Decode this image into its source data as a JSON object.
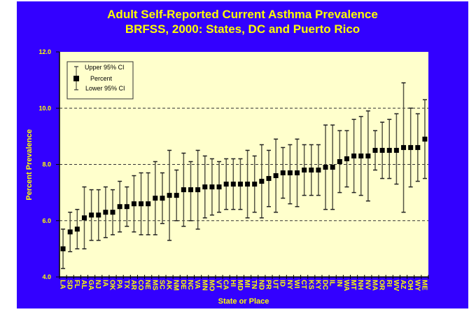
{
  "chart_data": {
    "type": "scatter",
    "title": "Adult Self-Reported Current Asthma Prevalence",
    "subtitle": "BRFSS, 2000: States, DC and Puerto Rico",
    "xlabel": "State or Place",
    "ylabel": "Percent Prevalence",
    "ylim": [
      4.0,
      12.0
    ],
    "yticks": [
      "4.0",
      "6.0",
      "8.0",
      "10.0",
      "12.0"
    ],
    "grid": "dashed horizontal at 6.0, 8.0, 10.0",
    "legend": {
      "placement": "top-left",
      "upper": "Upper 95% CI",
      "point": "Percent",
      "lower": "Lower 95% CI"
    },
    "colors": {
      "background": "#3300FF",
      "plot": "#FFFFCC",
      "text": "#FFFF00",
      "marker": "#000000",
      "errorbar": "#555544"
    },
    "categories": [
      "LA",
      "SD",
      "FL",
      "AL",
      "GA",
      "NJ",
      "IA",
      "OK",
      "PA",
      "TX",
      "AR",
      "CO",
      "NE",
      "MS",
      "SC",
      "AK",
      "NM",
      "DE",
      "NC",
      "VA",
      "MN",
      "MO",
      "VT",
      "CA",
      "HI",
      "MD",
      "MI",
      "TN",
      "ND",
      "PR",
      "UT",
      "ID",
      "NY",
      "WI",
      "CT",
      "KS",
      "KY",
      "DC",
      "IL",
      "IN",
      "WA",
      "MT",
      "NH",
      "NV",
      "MA",
      "OR",
      "RI",
      "WV",
      "AZ",
      "OH",
      "WY",
      "ME"
    ],
    "percent": [
      5.0,
      5.6,
      5.7,
      6.1,
      6.2,
      6.2,
      6.3,
      6.3,
      6.5,
      6.5,
      6.6,
      6.6,
      6.6,
      6.8,
      6.8,
      6.9,
      6.9,
      7.1,
      7.1,
      7.1,
      7.2,
      7.2,
      7.2,
      7.3,
      7.3,
      7.3,
      7.3,
      7.3,
      7.4,
      7.5,
      7.6,
      7.7,
      7.7,
      7.7,
      7.8,
      7.8,
      7.8,
      7.9,
      7.9,
      8.1,
      8.2,
      8.3,
      8.3,
      8.3,
      8.5,
      8.5,
      8.5,
      8.5,
      8.6,
      8.6,
      8.6,
      8.9
    ],
    "upper_ci": [
      5.7,
      6.3,
      6.4,
      7.2,
      7.1,
      7.1,
      7.2,
      7.1,
      7.4,
      7.2,
      7.6,
      7.7,
      7.7,
      8.1,
      7.7,
      8.5,
      7.8,
      8.4,
      8.1,
      8.5,
      8.3,
      8.2,
      8.1,
      8.2,
      8.2,
      8.2,
      8.5,
      8.3,
      8.7,
      8.5,
      8.9,
      8.6,
      8.7,
      8.9,
      8.7,
      8.7,
      8.7,
      9.4,
      9.4,
      9.2,
      9.2,
      9.6,
      9.7,
      9.9,
      9.2,
      9.5,
      9.6,
      9.8,
      10.9,
      10.0,
      9.8,
      10.3
    ],
    "lower_ci": [
      4.3,
      4.9,
      5.0,
      5.0,
      5.3,
      5.3,
      5.4,
      5.5,
      5.6,
      5.8,
      5.6,
      5.5,
      5.5,
      5.5,
      5.9,
      5.3,
      6.0,
      5.8,
      6.0,
      5.7,
      6.1,
      6.2,
      6.3,
      6.4,
      6.4,
      6.4,
      6.1,
      6.3,
      6.1,
      6.5,
      6.3,
      6.8,
      6.6,
      6.5,
      6.9,
      6.9,
      6.9,
      6.4,
      6.4,
      7.0,
      7.2,
      7.0,
      6.9,
      6.7,
      7.8,
      7.5,
      7.5,
      7.3,
      6.3,
      7.2,
      7.4,
      7.5
    ]
  }
}
